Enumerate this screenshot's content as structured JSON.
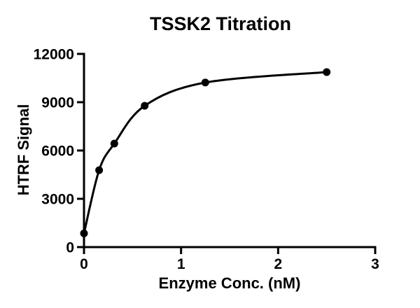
{
  "chart_data": {
    "type": "scatter",
    "title": "TSSK2 Titration",
    "xlabel": "Enzyme Conc. (nM)",
    "ylabel": "HTRF Signal",
    "x": [
      0,
      0.156,
      0.3125,
      0.625,
      1.25,
      2.5
    ],
    "y": [
      850,
      4780,
      6430,
      8780,
      10220,
      10870
    ],
    "fit_curve": "smooth saturation-binding curve through all points",
    "xlim": [
      0,
      3
    ],
    "ylim": [
      0,
      12000
    ],
    "xticks": [
      0,
      1,
      2,
      3
    ],
    "yticks": [
      0,
      3000,
      6000,
      9000,
      12000
    ],
    "grid": false,
    "legend_position": "none",
    "marker": "filled-circle",
    "colors": {
      "foreground": "#000000",
      "background": "#ffffff"
    }
  }
}
